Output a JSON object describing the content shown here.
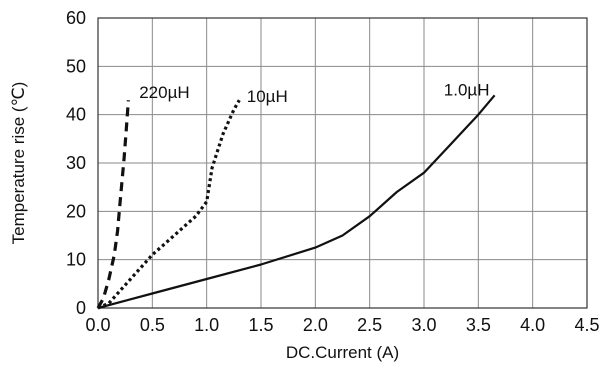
{
  "chart_data": {
    "type": "line",
    "xlabel": "DC.Current (A)",
    "ylabel": "Temperature rise (℃)",
    "xlim": [
      0,
      4.5
    ],
    "ylim": [
      0,
      60
    ],
    "xticks": [
      "0.0",
      "0.5",
      "1.0",
      "1.5",
      "2.0",
      "2.5",
      "3.0",
      "3.5",
      "4.0",
      "4.5"
    ],
    "yticks": [
      "0",
      "10",
      "20",
      "30",
      "40",
      "50",
      "60"
    ],
    "grid": true,
    "legend": "none",
    "series": [
      {
        "name": "220µH",
        "style": "dashed",
        "color": "#111111",
        "x": [
          0.0,
          0.05,
          0.1,
          0.15,
          0.18,
          0.2,
          0.22,
          0.24,
          0.26,
          0.28
        ],
        "y": [
          0,
          2,
          6,
          11,
          16,
          21,
          26,
          31,
          37,
          43
        ]
      },
      {
        "name": "10µH",
        "style": "dotted",
        "color": "#111111",
        "x": [
          0.0,
          0.1,
          0.3,
          0.5,
          0.6,
          0.75,
          0.9,
          1.0,
          1.05,
          1.15,
          1.25,
          1.3
        ],
        "y": [
          0,
          1,
          6,
          11,
          13,
          16,
          19,
          22,
          29,
          36,
          41,
          43
        ]
      },
      {
        "name": "1.0µH",
        "style": "solid",
        "color": "#111111",
        "x": [
          0.0,
          0.5,
          1.0,
          1.5,
          2.0,
          2.25,
          2.5,
          2.75,
          3.0,
          3.25,
          3.5,
          3.65
        ],
        "y": [
          0,
          3,
          6,
          9,
          12.5,
          15,
          19,
          24,
          28,
          34,
          40,
          44
        ]
      }
    ]
  }
}
